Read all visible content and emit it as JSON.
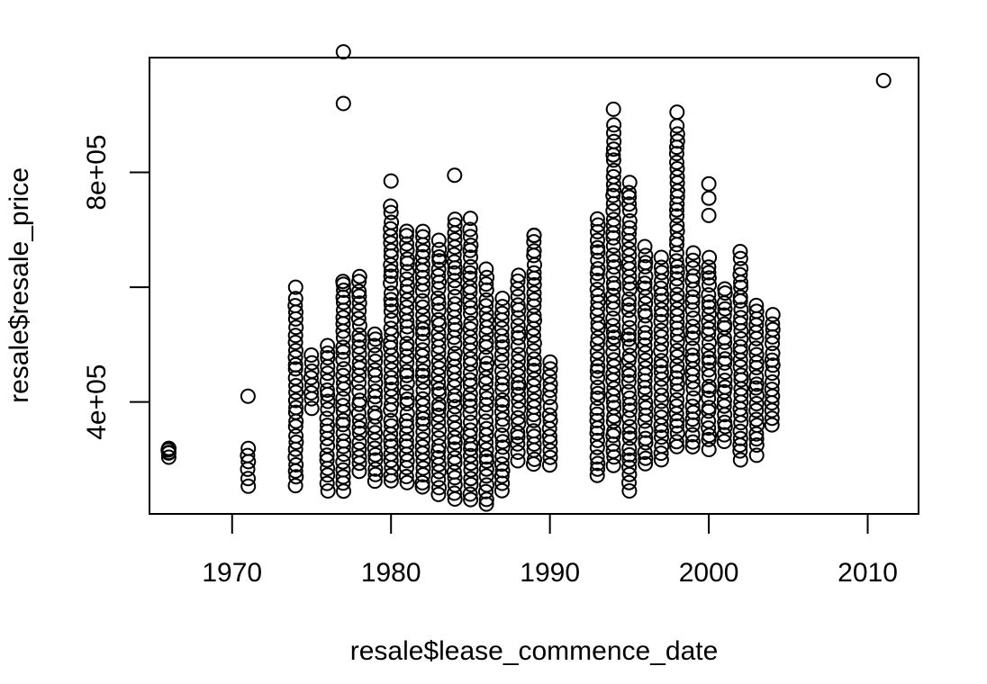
{
  "chart_data": {
    "type": "scatter",
    "title": "",
    "xlabel": "resale$lease_commence_date",
    "ylabel": "resale$resale_price",
    "xlim": [
      1964.8,
      2013.2
    ],
    "ylim": [
      205000,
      1000000
    ],
    "x_ticks": [
      1970,
      1980,
      1990,
      2000,
      2010
    ],
    "y_ticks": [
      400000,
      600000,
      800000
    ],
    "y_tick_labels": [
      "4e+05",
      "",
      "8e+05"
    ],
    "x_tick_labels": [
      "1970",
      "1980",
      "1990",
      "2000",
      "2010"
    ],
    "marker": "open-circle",
    "columns": [
      {
        "x": 1966,
        "min": 305000,
        "max": 320000
      },
      {
        "x": 1971,
        "min": 255000,
        "max": 320000
      },
      {
        "x": 1974,
        "min": 255000,
        "max": 580000
      },
      {
        "x": 1975,
        "min": 390000,
        "max": 480000
      },
      {
        "x": 1976,
        "min": 245000,
        "max": 500000
      },
      {
        "x": 1977,
        "min": 245000,
        "max": 610000
      },
      {
        "x": 1978,
        "min": 280000,
        "max": 620000
      },
      {
        "x": 1979,
        "min": 260000,
        "max": 520000
      },
      {
        "x": 1980,
        "min": 260000,
        "max": 740000
      },
      {
        "x": 1981,
        "min": 260000,
        "max": 700000
      },
      {
        "x": 1982,
        "min": 250000,
        "max": 700000
      },
      {
        "x": 1983,
        "min": 240000,
        "max": 680000
      },
      {
        "x": 1984,
        "min": 230000,
        "max": 720000
      },
      {
        "x": 1985,
        "min": 230000,
        "max": 700000
      },
      {
        "x": 1986,
        "min": 220000,
        "max": 630000
      },
      {
        "x": 1987,
        "min": 245000,
        "max": 580000
      },
      {
        "x": 1988,
        "min": 300000,
        "max": 620000
      },
      {
        "x": 1989,
        "min": 290000,
        "max": 690000
      },
      {
        "x": 1990,
        "min": 290000,
        "max": 470000
      },
      {
        "x": 1993,
        "min": 270000,
        "max": 720000
      },
      {
        "x": 1994,
        "min": 290000,
        "max": 880000
      },
      {
        "x": 1995,
        "min": 260000,
        "max": 780000
      },
      {
        "x": 1996,
        "min": 290000,
        "max": 670000
      },
      {
        "x": 1997,
        "min": 300000,
        "max": 650000
      },
      {
        "x": 1998,
        "min": 320000,
        "max": 880000
      },
      {
        "x": 1999,
        "min": 320000,
        "max": 660000
      },
      {
        "x": 2000,
        "min": 320000,
        "max": 650000
      },
      {
        "x": 2001,
        "min": 330000,
        "max": 600000
      },
      {
        "x": 2002,
        "min": 300000,
        "max": 660000
      },
      {
        "x": 2003,
        "min": 310000,
        "max": 570000
      },
      {
        "x": 2004,
        "min": 360000,
        "max": 550000
      }
    ],
    "outliers": [
      {
        "x": 1971,
        "y": 410000
      },
      {
        "x": 1974,
        "y": 600000
      },
      {
        "x": 1977,
        "y": 1010000
      },
      {
        "x": 1977,
        "y": 920000
      },
      {
        "x": 1977,
        "y": 605000
      },
      {
        "x": 1980,
        "y": 785000
      },
      {
        "x": 1984,
        "y": 795000
      },
      {
        "x": 1985,
        "y": 720000
      },
      {
        "x": 1989,
        "y": 690000
      },
      {
        "x": 1994,
        "y": 910000
      },
      {
        "x": 1995,
        "y": 245000
      },
      {
        "x": 1998,
        "y": 905000
      },
      {
        "x": 2000,
        "y": 780000
      },
      {
        "x": 2000,
        "y": 755000
      },
      {
        "x": 2000,
        "y": 725000
      },
      {
        "x": 2011,
        "y": 960000
      }
    ]
  }
}
